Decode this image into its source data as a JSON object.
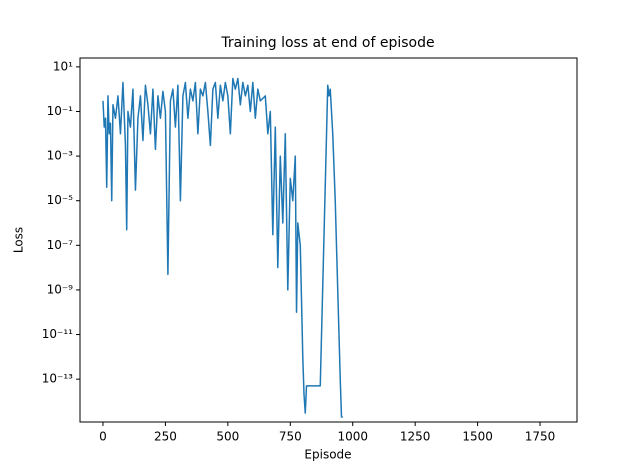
{
  "chart_data": {
    "type": "line",
    "title": "Training loss at end of episode",
    "x_label": "Episode",
    "y_label": "Loss",
    "log_y": true,
    "color": "#1f77b4",
    "xlim": [
      -92,
      1898
    ],
    "ylim": [
      25,
      1.2e-15
    ],
    "xticks": [
      0,
      250,
      500,
      750,
      1000,
      1250,
      1500,
      1750
    ],
    "yticks": [
      {
        "value": 10,
        "label": "10¹"
      },
      {
        "value": 0.1,
        "label": "10⁻¹"
      },
      {
        "value": 0.001,
        "label": "10⁻³"
      },
      {
        "value": 1e-05,
        "label": "10⁻⁵"
      },
      {
        "value": 1e-07,
        "label": "10⁻⁷"
      },
      {
        "value": 1e-09,
        "label": "10⁻⁹"
      },
      {
        "value": 1e-11,
        "label": "10⁻¹¹"
      },
      {
        "value": 1e-13,
        "label": "10⁻¹³"
      }
    ],
    "x": [
      0,
      5,
      10,
      15,
      20,
      25,
      30,
      35,
      40,
      50,
      60,
      70,
      80,
      90,
      95,
      100,
      110,
      120,
      130,
      140,
      150,
      160,
      170,
      180,
      190,
      200,
      210,
      220,
      230,
      240,
      250,
      260,
      270,
      280,
      290,
      300,
      310,
      320,
      330,
      340,
      350,
      360,
      370,
      380,
      390,
      400,
      410,
      420,
      430,
      440,
      450,
      460,
      470,
      480,
      490,
      500,
      510,
      520,
      530,
      540,
      550,
      560,
      570,
      580,
      590,
      600,
      610,
      620,
      630,
      650,
      660,
      670,
      680,
      690,
      700,
      710,
      720,
      730,
      740,
      750,
      760,
      770,
      775,
      780,
      790,
      800,
      805,
      810,
      815,
      820,
      870,
      900,
      905,
      910,
      920,
      930,
      940,
      950,
      955,
      960
    ],
    "values": [
      0.3,
      0.02,
      0.05,
      4e-05,
      0.5,
      0.01,
      0.03,
      1e-05,
      0.2,
      0.05,
      0.5,
      0.01,
      2,
      0.003,
      5e-07,
      0.1,
      0.02,
      1,
      3e-05,
      0.05,
      0.5,
      0.005,
      1.5,
      0.2,
      0.01,
      1,
      0.002,
      0.5,
      0.05,
      0.8,
      0.1,
      5e-09,
      0.3,
      1,
      0.02,
      1.5,
      1e-05,
      0.5,
      2,
      0.05,
      1,
      0.3,
      2,
      0.01,
      1,
      0.5,
      2,
      0.1,
      0.003,
      1,
      2,
      0.05,
      1.5,
      0.3,
      2,
      0.5,
      0.01,
      3,
      1,
      3,
      0.2,
      2,
      0.5,
      1.5,
      0.1,
      2,
      0.05,
      1,
      0.3,
      0.5,
      0.01,
      0.1,
      3e-07,
      0.02,
      1e-08,
      0.001,
      1e-06,
      0.01,
      1e-09,
      0.0001,
      1e-05,
      0.001,
      1e-10,
      1e-06,
      1e-07,
      1e-12,
      2e-14,
      3e-15,
      5e-14,
      5e-14,
      5e-14,
      1.5,
      0.5,
      1,
      0.01,
      1e-05,
      1e-09,
      1e-13,
      2e-15,
      2e-15
    ]
  }
}
